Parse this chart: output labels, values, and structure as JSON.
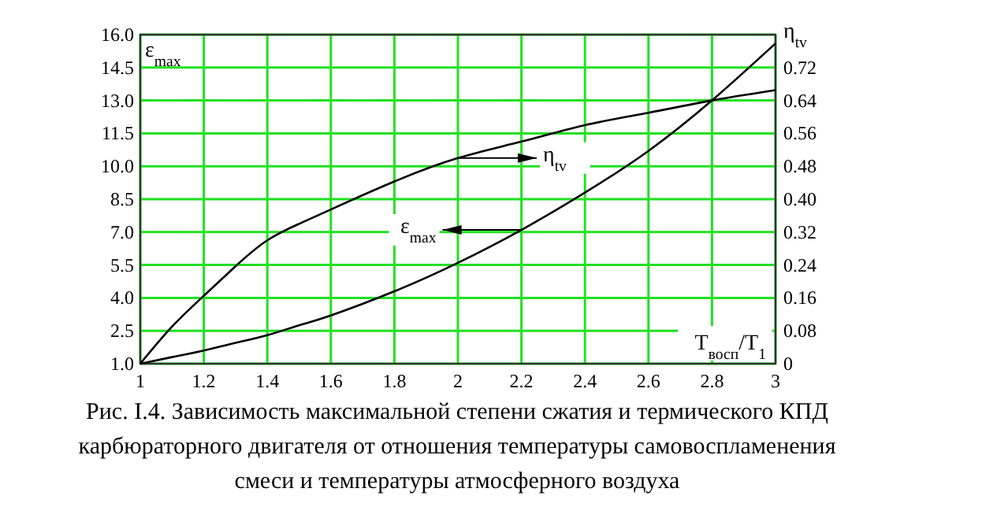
{
  "chart_data": {
    "type": "line",
    "xlabel": "T$_{восп}$/T$_{1}$",
    "ylabel": "ε$_{max}$",
    "y2label": "η$_{tv}$",
    "x": [
      1,
      1.1,
      1.2,
      1.3,
      1.4,
      1.5,
      1.6,
      1.8,
      2.0,
      2.2,
      2.4,
      2.6,
      2.8,
      3.0
    ],
    "series": [
      {
        "color": "#000000",
        "values": [
          1.0,
          1.3,
          1.6,
          1.95,
          2.3,
          2.75,
          3.2,
          4.3,
          5.6,
          7.1,
          8.8,
          10.7,
          13.0,
          15.6
        ]
      },
      {
        "color": "#000000",
        "axis": "y2",
        "values": [
          0,
          0.09,
          0.165,
          0.237,
          0.3,
          0.34,
          0.375,
          0.443,
          0.5,
          0.54,
          0.58,
          0.61,
          0.64,
          0.665
        ]
      }
    ],
    "xlim": [
      1,
      3
    ],
    "xticks": [
      1,
      1.2,
      1.4,
      1.6,
      1.8,
      2,
      2.2,
      2.4,
      2.6,
      2.8,
      3
    ],
    "ylim": [
      1,
      16
    ],
    "yticks": [
      {
        "value": 1,
        "label": "1.0"
      },
      2.5,
      {
        "value": 4,
        "label": "4.0"
      },
      5.5,
      {
        "value": 7,
        "label": "7.0"
      },
      8.5,
      {
        "value": 10,
        "label": "10.0"
      },
      11.5,
      {
        "value": 13,
        "label": "13.0"
      },
      14.5,
      {
        "value": 16,
        "label": "16.0"
      }
    ],
    "y2lim": [
      0,
      0.8
    ],
    "y2ticks": [
      0,
      0.08,
      0.16,
      0.24,
      0.32,
      {
        "value": 0.4,
        "label": "0.40"
      },
      0.48,
      0.56,
      0.64,
      0.72
    ],
    "grid": true,
    "legend": false,
    "marker": "none",
    "line_style": "solid",
    "annotations": [
      "ε$_{max}$",
      "η$_{tv}$",
      "Рис. I.4. Зависимость максимальной степени сжатия и термического КПД карбюраторного двигателя от отношения температуры самовоспламенения смеси и температуры атмосферного воздуха"
    ]
  }
}
